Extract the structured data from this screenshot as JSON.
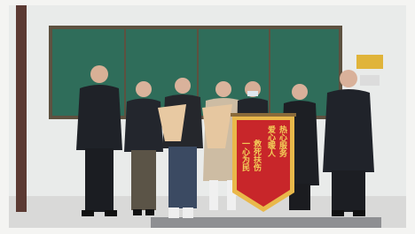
{
  "banner": {
    "lines": [
      "热心服务",
      "爱心暖人",
      "救死扶伤",
      "一心为民"
    ]
  }
}
